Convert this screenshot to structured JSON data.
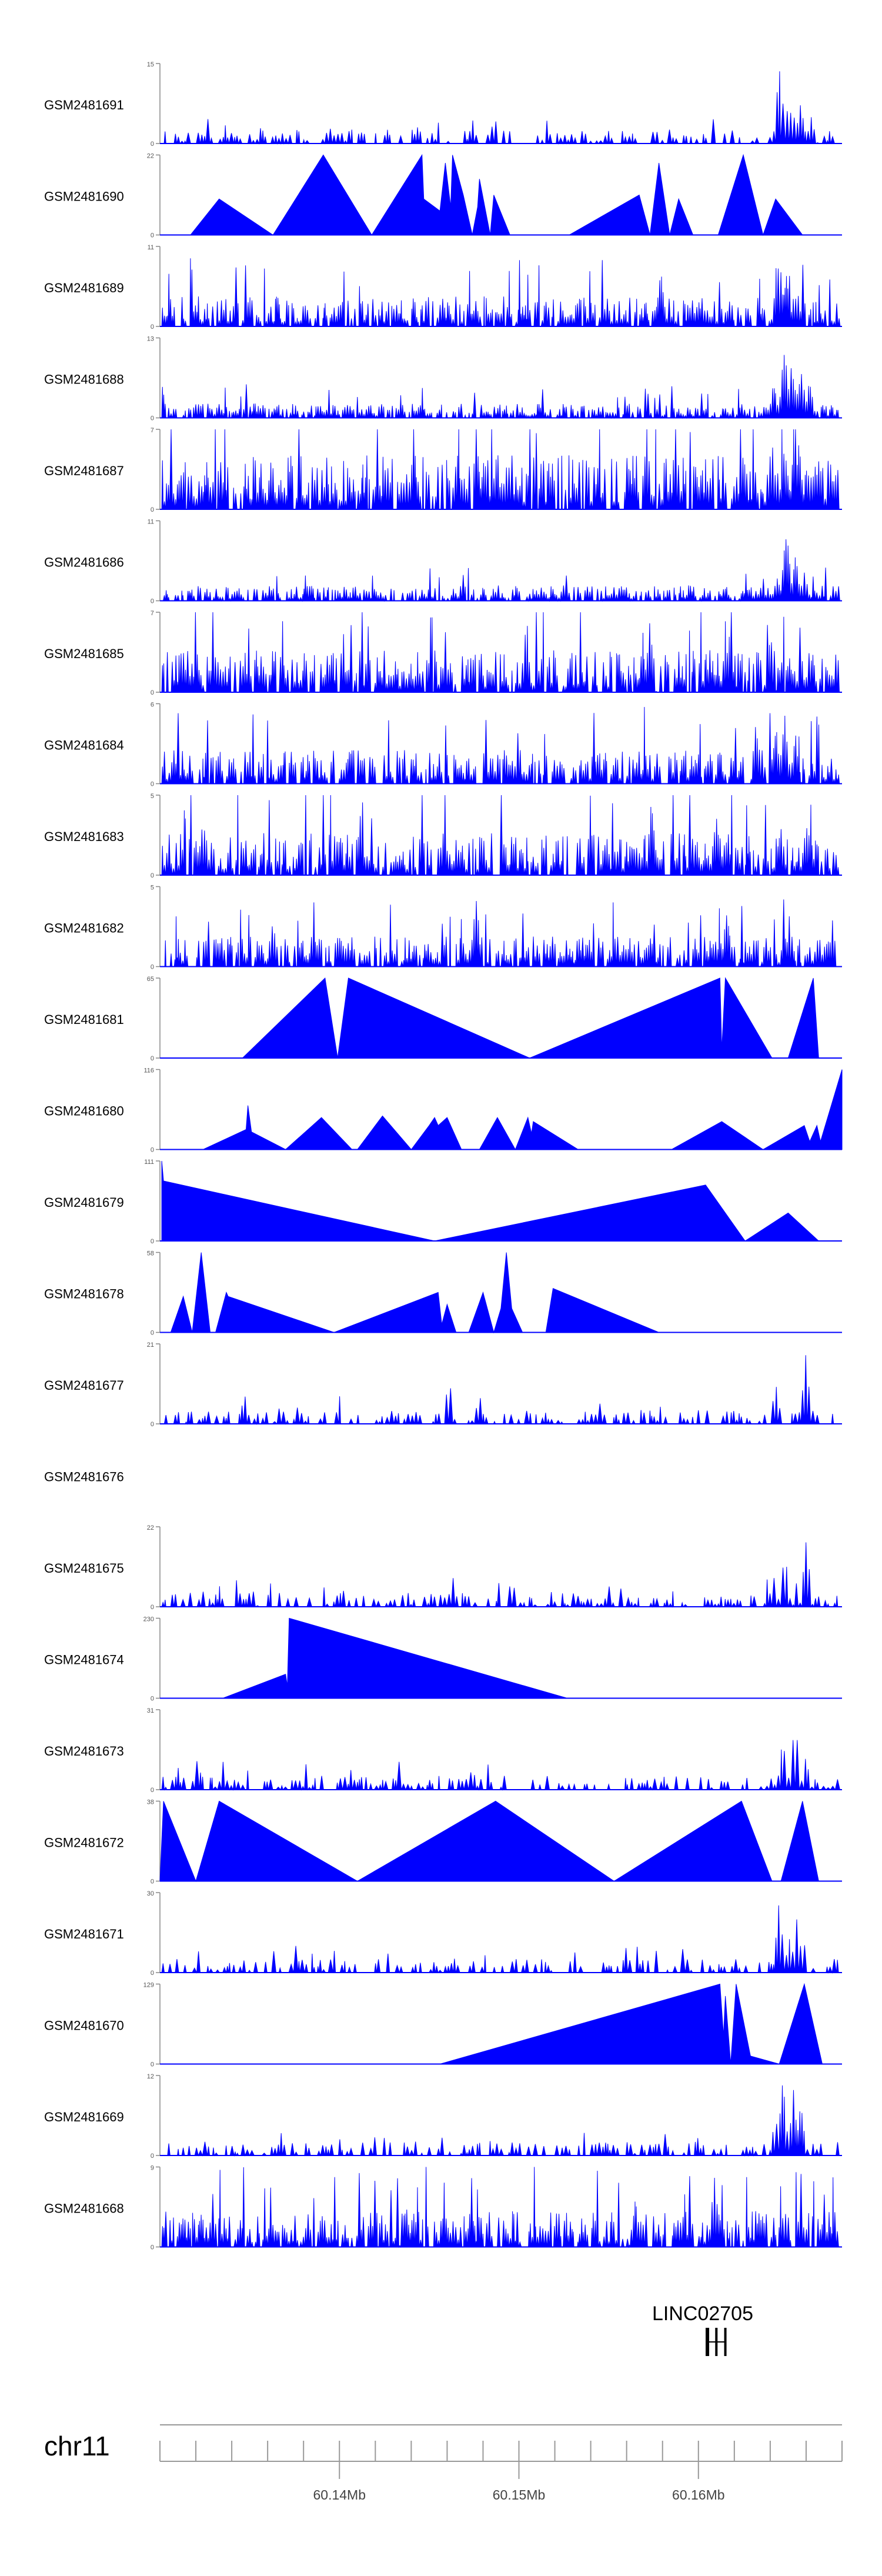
{
  "chart_data": {
    "type": "area",
    "genome_track": true,
    "chromosome": "chr11",
    "x_tick_labels": [
      "60.14Mb",
      "60.15Mb",
      "60.16Mb"
    ],
    "x_tick_values": [
      60.14,
      60.15,
      60.16
    ],
    "xlim": [
      60.13,
      60.168
    ],
    "gene": {
      "name": "LINC02705",
      "exon_positions": [
        60.1605,
        60.161,
        60.1615
      ]
    },
    "fill_color": "#0000ff",
    "series": [
      {
        "name": "GSM2481691",
        "ymax": 15,
        "ymax_label": "15",
        "style": "sparse",
        "seed": 11,
        "peaks": [
          [
            60.1645,
            1.0
          ],
          [
            60.1648,
            0.7
          ],
          [
            60.1652,
            0.55
          ],
          [
            60.1657,
            0.6
          ],
          [
            60.1663,
            0.35
          ]
        ]
      },
      {
        "name": "GSM2481690",
        "ymax": 22,
        "ymax_label": "22",
        "style": "tri",
        "points": [
          [
            60.1317,
            0
          ],
          [
            60.1333,
            0.45
          ],
          [
            60.1363,
            0
          ],
          [
            60.1391,
            1.0
          ],
          [
            60.1418,
            0
          ],
          [
            60.1446,
            1.0
          ],
          [
            60.1447,
            0.45
          ],
          [
            60.1456,
            0.3
          ],
          [
            60.1459,
            0.9
          ],
          [
            60.1462,
            0.35
          ],
          [
            60.1463,
            1.0
          ],
          [
            60.1469,
            0.5
          ],
          [
            60.1474,
            0
          ],
          [
            60.1477,
            0.35
          ],
          [
            60.1478,
            0.7
          ],
          [
            60.1484,
            0
          ],
          [
            60.1486,
            0.5
          ],
          [
            60.1495,
            0
          ],
          [
            60.1528,
            0
          ],
          [
            60.1567,
            0.5
          ],
          [
            60.1573,
            0
          ],
          [
            60.1578,
            0.9
          ],
          [
            60.1584,
            0
          ],
          [
            60.1589,
            0.45
          ],
          [
            60.1597,
            0
          ],
          [
            60.1611,
            0
          ],
          [
            60.1625,
            1.0
          ],
          [
            60.1636,
            0
          ],
          [
            60.1643,
            0.45
          ],
          [
            60.1658,
            0
          ]
        ]
      },
      {
        "name": "GSM2481689",
        "ymax": 11,
        "ymax_label": "11",
        "style": "dense",
        "seed": 23,
        "base": 0.25,
        "peaks": [
          [
            60.1645,
            1.0
          ],
          [
            60.1649,
            0.65
          ],
          [
            60.1655,
            0.5
          ],
          [
            60.1579,
            0.75
          ]
        ]
      },
      {
        "name": "GSM2481688",
        "ymax": 13,
        "ymax_label": "13",
        "style": "dense",
        "seed": 31,
        "base": 0.12,
        "peaks": [
          [
            60.1648,
            1.0
          ],
          [
            60.1652,
            0.8
          ],
          [
            60.1657,
            0.65
          ],
          [
            60.1642,
            0.45
          ],
          [
            60.1662,
            0.5
          ]
        ]
      },
      {
        "name": "GSM2481687",
        "ymax": 7,
        "ymax_label": "7",
        "style": "dense",
        "seed": 41,
        "base": 0.45,
        "peaks": [
          [
            60.1641,
            1.0
          ],
          [
            60.1648,
            0.95
          ],
          [
            60.1656,
            0.9
          ],
          [
            60.1625,
            0.85
          ],
          [
            60.1441,
            0.8
          ]
        ]
      },
      {
        "name": "GSM2481686",
        "ymax": 11,
        "ymax_label": "11",
        "style": "dense",
        "seed": 53,
        "base": 0.13,
        "peaks": [
          [
            60.1649,
            1.0
          ],
          [
            60.1654,
            0.6
          ],
          [
            60.1644,
            0.35
          ],
          [
            60.1659,
            0.4
          ]
        ]
      },
      {
        "name": "GSM2481685",
        "ymax": 7,
        "ymax_label": "7",
        "style": "dense",
        "seed": 61,
        "base": 0.35,
        "peaks": [
          [
            60.1573,
            1.0
          ],
          [
            60.1504,
            0.85
          ],
          [
            60.164,
            0.8
          ],
          [
            60.1617,
            0.75
          ]
        ]
      },
      {
        "name": "GSM2481684",
        "ymax": 6,
        "ymax_label": "6",
        "style": "dense",
        "seed": 71,
        "base": 0.28,
        "peaks": [
          [
            60.1648,
            1.0
          ],
          [
            60.1643,
            0.75
          ],
          [
            60.1654,
            0.65
          ],
          [
            60.1633,
            0.6
          ]
        ]
      },
      {
        "name": "GSM2481683",
        "ymax": 5,
        "ymax_label": "5",
        "style": "dense",
        "seed": 83,
        "base": 0.35,
        "peaks": [
          [
            60.1574,
            1.0
          ],
          [
            60.1324,
            0.8
          ],
          [
            60.161,
            0.8
          ],
          [
            60.1646,
            0.7
          ],
          [
            60.166,
            0.7
          ]
        ]
      },
      {
        "name": "GSM2481682",
        "ymax": 5,
        "ymax_label": "5",
        "style": "dense",
        "seed": 97,
        "base": 0.25,
        "peaks": [
          [
            60.1476,
            1.0
          ],
          [
            60.1363,
            0.7
          ],
          [
            60.1616,
            0.8
          ],
          [
            60.1651,
            0.6
          ]
        ]
      },
      {
        "name": "GSM2481681",
        "ymax": 65,
        "ymax_label": "65",
        "style": "tri",
        "points": [
          [
            60.1346,
            0
          ],
          [
            60.1392,
            1.0
          ],
          [
            60.1399,
            0
          ],
          [
            60.1405,
            1.0
          ],
          [
            60.1506,
            0
          ],
          [
            60.1612,
            1.0
          ],
          [
            60.1613,
            0.1
          ],
          [
            60.1615,
            1.0
          ],
          [
            60.1641,
            0
          ],
          [
            60.165,
            0
          ],
          [
            60.1664,
            1.0
          ],
          [
            60.1667,
            0
          ]
        ]
      },
      {
        "name": "GSM2481680",
        "ymax": 116,
        "ymax_label": "116",
        "style": "tri",
        "points": [
          [
            60.1324,
            0
          ],
          [
            60.1348,
            0.25
          ],
          [
            60.1349,
            0.55
          ],
          [
            60.1351,
            0.22
          ],
          [
            60.137,
            0
          ],
          [
            60.139,
            0.4
          ],
          [
            60.1407,
            0
          ],
          [
            60.141,
            0
          ],
          [
            60.1424,
            0.42
          ],
          [
            60.144,
            0
          ],
          [
            60.145,
            0.3
          ],
          [
            60.1453,
            0.4
          ],
          [
            60.1455,
            0.3
          ],
          [
            60.146,
            0.4
          ],
          [
            60.1468,
            0
          ],
          [
            60.1478,
            0
          ],
          [
            60.1488,
            0.4
          ],
          [
            60.1498,
            0
          ],
          [
            60.1505,
            0.4
          ],
          [
            60.1507,
            0.2
          ],
          [
            60.1508,
            0.35
          ],
          [
            60.1533,
            0
          ],
          [
            60.1585,
            0
          ],
          [
            60.1613,
            0.35
          ],
          [
            60.1636,
            0
          ],
          [
            60.1659,
            0.3
          ],
          [
            60.1662,
            0.1
          ],
          [
            60.1666,
            0.3
          ],
          [
            60.1668,
            0.1
          ],
          [
            60.168,
            1.0
          ],
          [
            60.168,
            0
          ]
        ]
      },
      {
        "name": "GSM2481679",
        "ymax": 111,
        "ymax_label": "111",
        "style": "tri",
        "points": [
          [
            60.1301,
            1.0
          ],
          [
            60.1302,
            0.75
          ],
          [
            60.1453,
            0
          ],
          [
            60.1604,
            0.7
          ],
          [
            60.1626,
            0
          ],
          [
            60.165,
            0.35
          ],
          [
            60.1667,
            0
          ]
        ]
      },
      {
        "name": "GSM2481678",
        "ymax": 58,
        "ymax_label": "58",
        "style": "tri",
        "points": [
          [
            60.1306,
            0
          ],
          [
            60.1313,
            0.45
          ],
          [
            60.1318,
            0
          ],
          [
            60.1323,
            1.0
          ],
          [
            60.1328,
            0
          ],
          [
            60.1331,
            0
          ],
          [
            60.1337,
            0.5
          ],
          [
            60.1338,
            0.45
          ],
          [
            60.1397,
            0
          ],
          [
            60.1455,
            0.5
          ],
          [
            60.1457,
            0.1
          ],
          [
            60.146,
            0.35
          ],
          [
            60.1465,
            0
          ],
          [
            60.1472,
            0
          ],
          [
            60.148,
            0.5
          ],
          [
            60.1486,
            0
          ],
          [
            60.149,
            0.3
          ],
          [
            60.1493,
            1.0
          ],
          [
            60.1496,
            0.3
          ],
          [
            60.1502,
            0
          ],
          [
            60.1515,
            0
          ],
          [
            60.1519,
            0.55
          ],
          [
            60.1578,
            0
          ],
          [
            60.1598,
            0
          ]
        ]
      },
      {
        "name": "GSM2481677",
        "ymax": 21,
        "ymax_label": "21",
        "style": "sparse",
        "seed": 131,
        "peaks": [
          [
            60.166,
            1.0
          ],
          [
            60.1643,
            0.6
          ],
          [
            60.1461,
            0.7
          ],
          [
            60.1347,
            0.45
          ],
          [
            60.1478,
            0.4
          ]
        ]
      },
      {
        "name": "GSM2481676",
        "ymax": 0,
        "ymax_label": "",
        "style": "empty"
      },
      {
        "name": "GSM2481675",
        "ymax": 22,
        "ymax_label": "22",
        "style": "sparse",
        "seed": 151,
        "peaks": [
          [
            60.166,
            1.0
          ],
          [
            60.1648,
            0.75
          ],
          [
            60.1642,
            0.45
          ],
          [
            60.1463,
            0.4
          ],
          [
            60.1351,
            0.3
          ]
        ]
      },
      {
        "name": "GSM2481674",
        "ymax": 230,
        "ymax_label": "230",
        "style": "tri",
        "points": [
          [
            60.1335,
            0
          ],
          [
            60.137,
            0.3
          ],
          [
            60.1371,
            0.15
          ],
          [
            60.1372,
            1.0
          ],
          [
            60.1527,
            0
          ]
        ]
      },
      {
        "name": "GSM2481673",
        "ymax": 31,
        "ymax_label": "31",
        "style": "sparse",
        "seed": 171,
        "peaks": [
          [
            60.1654,
            1.0
          ],
          [
            60.1647,
            0.65
          ],
          [
            60.166,
            0.45
          ],
          [
            60.132,
            0.25
          ],
          [
            60.1474,
            0.3
          ]
        ]
      },
      {
        "name": "GSM2481672",
        "ymax": 38,
        "ymax_label": "38",
        "style": "tri",
        "points": [
          [
            60.13,
            0
          ],
          [
            60.1302,
            1.0
          ],
          [
            60.132,
            0
          ],
          [
            60.1333,
            1.0
          ],
          [
            60.141,
            0
          ],
          [
            60.1487,
            1.0
          ],
          [
            60.1553,
            0
          ],
          [
            60.1624,
            1.0
          ],
          [
            60.1641,
            0
          ],
          [
            60.1646,
            0
          ],
          [
            60.1658,
            1.0
          ],
          [
            60.1667,
            0
          ]
        ]
      },
      {
        "name": "GSM2481671",
        "ymax": 30,
        "ymax_label": "30",
        "style": "sparse",
        "seed": 191,
        "peaks": [
          [
            60.1645,
            1.0
          ],
          [
            60.1655,
            0.85
          ],
          [
            60.1651,
            0.5
          ],
          [
            60.156,
            0.35
          ],
          [
            60.1658,
            0.6
          ]
        ]
      },
      {
        "name": "GSM2481670",
        "ymax": 129,
        "ymax_label": "129",
        "style": "tri",
        "points": [
          [
            60.1456,
            0
          ],
          [
            60.1612,
            1.0
          ],
          [
            60.1614,
            0.35
          ],
          [
            60.1615,
            0.85
          ],
          [
            60.1618,
            0
          ],
          [
            60.1621,
            1.0
          ],
          [
            60.1629,
            0.1
          ],
          [
            60.1645,
            0
          ],
          [
            60.1659,
            1.0
          ],
          [
            60.1669,
            0
          ]
        ]
      },
      {
        "name": "GSM2481669",
        "ymax": 12,
        "ymax_label": "12",
        "style": "sparse",
        "seed": 211,
        "peaks": [
          [
            60.1647,
            1.0
          ],
          [
            60.1653,
            0.9
          ],
          [
            60.1657,
            0.7
          ],
          [
            60.1643,
            0.55
          ]
        ]
      },
      {
        "name": "GSM2481668",
        "ymax": 9,
        "ymax_label": "9",
        "style": "dense",
        "seed": 223,
        "base": 0.3,
        "peaks": [
          [
            60.1609,
            1.0
          ],
          [
            60.1565,
            0.7
          ],
          [
            60.1657,
            0.55
          ],
          [
            60.1437,
            0.55
          ]
        ]
      }
    ]
  }
}
